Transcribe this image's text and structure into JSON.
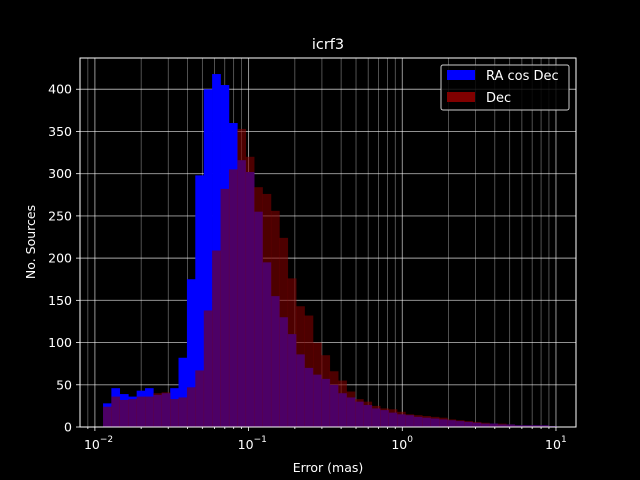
{
  "chart_data": {
    "type": "bar",
    "title": "icrf3",
    "xlabel": "Error (mas)",
    "ylabel": "No. Sources",
    "xscale": "log",
    "xlim": [
      0.008,
      13.5
    ],
    "ylim": [
      0,
      437
    ],
    "grid": true,
    "grid_minor": true,
    "legend_position": "top-right",
    "x_ticks": [
      {
        "value": 0.01,
        "label": "10",
        "exp": "−2"
      },
      {
        "value": 0.1,
        "label": "10",
        "exp": "−1"
      },
      {
        "value": 1,
        "label": "10",
        "exp": "0"
      },
      {
        "value": 10,
        "label": "10",
        "exp": "1"
      }
    ],
    "y_ticks": [
      0,
      50,
      100,
      150,
      200,
      250,
      300,
      350,
      400
    ],
    "bin_edges": [
      0.0113,
      0.0128,
      0.0145,
      0.0165,
      0.0187,
      0.0212,
      0.024,
      0.0272,
      0.0309,
      0.035,
      0.0397,
      0.045,
      0.0511,
      0.0579,
      0.0657,
      0.0745,
      0.0845,
      0.0958,
      0.1087,
      0.1233,
      0.1398,
      0.1586,
      0.1798,
      0.204,
      0.2313,
      0.2624,
      0.2976,
      0.3375,
      0.3828,
      0.4341,
      0.4924,
      0.5584,
      0.6333,
      0.7183,
      0.8146,
      0.9239,
      1.0479,
      1.1884,
      1.3478,
      1.5286,
      1.7337,
      1.9663,
      2.23,
      2.5292,
      2.8685,
      3.2533,
      3.6897,
      4.1846,
      4.746,
      5.3826,
      6.1047,
      6.9236,
      7.8524,
      8.9057,
      10.1004
    ],
    "series": [
      {
        "name": "RA cos Dec",
        "color": "#0000ff",
        "values": [
          28,
          46,
          39,
          36,
          43,
          46,
          38,
          40,
          46,
          82,
          175,
          298,
          400,
          418,
          405,
          360,
          316,
          302,
          255,
          195,
          155,
          130,
          110,
          86,
          70,
          62,
          57,
          50,
          40,
          35,
          30,
          26,
          22,
          20,
          17,
          15,
          14,
          12,
          11,
          10,
          9,
          8,
          7,
          6,
          5,
          4,
          4,
          3,
          3,
          2,
          2,
          2,
          2,
          1
        ]
      },
      {
        "name": "Dec",
        "color": "#800000",
        "values": [
          24,
          36,
          32,
          33,
          36,
          36,
          40,
          41,
          33,
          35,
          47,
          67,
          138,
          209,
          282,
          305,
          353,
          320,
          284,
          276,
          256,
          224,
          176,
          143,
          132,
          100,
          85,
          66,
          55,
          42,
          33,
          30,
          25,
          22,
          21,
          18,
          15,
          14,
          13,
          12,
          11,
          9,
          8,
          7,
          6,
          5,
          4,
          4,
          3,
          2,
          2,
          2,
          2,
          1
        ]
      }
    ]
  }
}
